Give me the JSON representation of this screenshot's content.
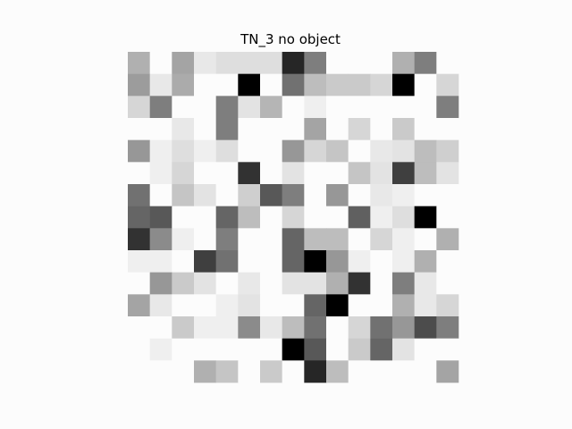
{
  "chart_data": {
    "type": "heatmap",
    "title": "TN_3 no object",
    "colormap": "gray_r",
    "axis": "off",
    "value_range": [
      0,
      1
    ],
    "rows": 15,
    "cols": 15,
    "values": [
      [
        0.3,
        0.0,
        0.35,
        0.08,
        0.12,
        0.12,
        0.12,
        0.85,
        0.5,
        0.0,
        0.0,
        0.0,
        0.3,
        0.5,
        0.0
      ],
      [
        0.38,
        0.08,
        0.32,
        0.0,
        0.0,
        1.0,
        0.0,
        0.55,
        0.25,
        0.2,
        0.2,
        0.15,
        1.0,
        0.0,
        0.15
      ],
      [
        0.15,
        0.5,
        0.0,
        0.0,
        0.5,
        0.1,
        0.28,
        0.0,
        0.05,
        0.0,
        0.0,
        0.0,
        0.0,
        0.0,
        0.5
      ],
      [
        0.0,
        0.0,
        0.08,
        0.0,
        0.5,
        0.0,
        0.0,
        0.0,
        0.35,
        0.0,
        0.15,
        0.0,
        0.2,
        0.0,
        0.0
      ],
      [
        0.4,
        0.05,
        0.12,
        0.05,
        0.12,
        0.0,
        0.0,
        0.4,
        0.15,
        0.22,
        0.0,
        0.08,
        0.1,
        0.25,
        0.18
      ],
      [
        0.0,
        0.05,
        0.15,
        0.0,
        0.0,
        0.8,
        0.0,
        0.1,
        0.0,
        0.0,
        0.22,
        0.1,
        0.75,
        0.25,
        0.1
      ],
      [
        0.55,
        0.0,
        0.22,
        0.1,
        0.0,
        0.18,
        0.65,
        0.5,
        0.0,
        0.4,
        0.0,
        0.08,
        0.05,
        0.0,
        0.0
      ],
      [
        0.6,
        0.65,
        0.0,
        0.0,
        0.6,
        0.25,
        0.0,
        0.15,
        0.0,
        0.0,
        0.62,
        0.05,
        0.12,
        1.0,
        0.0
      ],
      [
        0.8,
        0.45,
        0.05,
        0.0,
        0.5,
        0.0,
        0.0,
        0.6,
        0.25,
        0.25,
        0.0,
        0.15,
        0.05,
        0.0,
        0.3
      ],
      [
        0.05,
        0.05,
        0.0,
        0.75,
        0.55,
        0.0,
        0.0,
        0.6,
        1.0,
        0.4,
        0.05,
        0.0,
        0.05,
        0.3,
        0.0
      ],
      [
        0.0,
        0.4,
        0.2,
        0.1,
        0.0,
        0.08,
        0.0,
        0.1,
        0.1,
        0.3,
        0.8,
        0.0,
        0.5,
        0.08,
        0.0
      ],
      [
        0.35,
        0.08,
        0.0,
        0.0,
        0.05,
        0.1,
        0.0,
        0.0,
        0.6,
        1.0,
        0.0,
        0.0,
        0.3,
        0.08,
        0.15
      ],
      [
        0.0,
        0.0,
        0.2,
        0.05,
        0.05,
        0.45,
        0.08,
        0.25,
        0.55,
        0.0,
        0.15,
        0.55,
        0.4,
        0.7,
        0.5
      ],
      [
        0.0,
        0.05,
        0.0,
        0.0,
        0.0,
        0.0,
        0.0,
        1.0,
        0.65,
        0.0,
        0.2,
        0.6,
        0.1,
        0.0,
        0.0
      ],
      [
        0.0,
        0.0,
        0.0,
        0.3,
        0.22,
        0.0,
        0.2,
        0.0,
        0.85,
        0.25,
        0.0,
        0.0,
        0.0,
        0.0,
        0.35
      ]
    ]
  }
}
